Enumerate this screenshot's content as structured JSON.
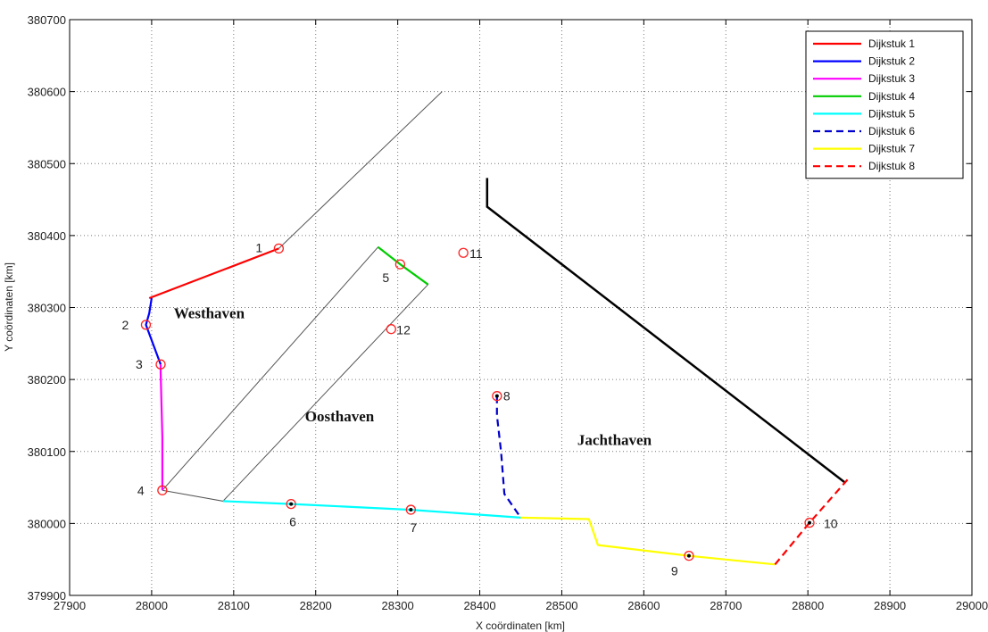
{
  "chart_data": {
    "type": "line",
    "xlabel": "X coördinaten [km]",
    "ylabel": "Y coördinaten [km]",
    "xlim": [
      27900,
      29000
    ],
    "ylim": [
      379900,
      380700
    ],
    "xticks": [
      27900,
      28000,
      28100,
      28200,
      28300,
      28400,
      28500,
      28600,
      28700,
      28800,
      28900,
      29000
    ],
    "yticks": [
      379900,
      380000,
      380100,
      380200,
      380300,
      380400,
      380500,
      380600,
      380700
    ],
    "grid": "dotted",
    "legend_position": "top-right",
    "series": [
      {
        "name": "Dijkstuk 1",
        "color": "#ff0000",
        "dash": "solid",
        "x": [
          27997,
          28155
        ],
        "y": [
          380313,
          380382
        ]
      },
      {
        "name": "Dijkstuk 2",
        "color": "#0000ff",
        "dash": "solid",
        "x": [
          28000,
          27997,
          27993,
          28011
        ],
        "y": [
          380313,
          380292,
          380276,
          380221
        ]
      },
      {
        "name": "Dijkstuk 3",
        "color": "#ff00ff",
        "dash": "solid",
        "x": [
          28011,
          28011,
          28013,
          28013
        ],
        "y": [
          380221,
          380210,
          380120,
          380046
        ]
      },
      {
        "name": "Dijkstuk 4",
        "color": "#00cc00",
        "dash": "solid",
        "x": [
          28276,
          28303,
          28337
        ],
        "y": [
          380384,
          380360,
          380332
        ]
      },
      {
        "name": "Dijkstuk 5",
        "color": "#00ffff",
        "dash": "solid",
        "x": [
          28087,
          28170,
          28316,
          28450
        ],
        "y": [
          380031,
          380027,
          380019,
          380008
        ]
      },
      {
        "name": "Dijkstuk 6",
        "color": "#0000cc",
        "dash": "dashed",
        "x": [
          28421,
          28421,
          28426,
          28428,
          28430,
          28450
        ],
        "y": [
          380177,
          380150,
          380100,
          380070,
          380041,
          380008
        ]
      },
      {
        "name": "Dijkstuk 7",
        "color": "#ffff00",
        "dash": "solid",
        "x": [
          28450,
          28533,
          28544,
          28655,
          28760
        ],
        "y": [
          380008,
          380006,
          379970,
          379955,
          379943
        ]
      },
      {
        "name": "Dijkstuk 8",
        "color": "#ff0000",
        "dash": "dashed",
        "x": [
          28760,
          28802,
          28850
        ],
        "y": [
          379943,
          380001,
          380063
        ]
      }
    ],
    "outlines": [
      {
        "color": "#555555",
        "width": 1,
        "x": [
          28013,
          28276,
          28337,
          28087,
          28013
        ],
        "y": [
          380046,
          380384,
          380332,
          380031,
          380046
        ]
      },
      {
        "color": "#555555",
        "width": 1,
        "x": [
          28155,
          28354
        ],
        "y": [
          380382,
          380600
        ]
      },
      {
        "color": "#000000",
        "width": 2.5,
        "x": [
          28409,
          28409,
          28845
        ],
        "y": [
          380480,
          380440,
          380057
        ]
      }
    ],
    "markers": [
      {
        "label": "1",
        "x": 28155,
        "y": 380382,
        "dot": false,
        "lx": -26,
        "ly": 4
      },
      {
        "label": "2",
        "x": 27993,
        "y": 380276,
        "dot": false,
        "lx": -27,
        "ly": 5
      },
      {
        "label": "3",
        "x": 28011,
        "y": 380221,
        "dot": false,
        "lx": -28,
        "ly": 5
      },
      {
        "label": "4",
        "x": 28013,
        "y": 380046,
        "dot": false,
        "lx": -28,
        "ly": 5
      },
      {
        "label": "5",
        "x": 28303,
        "y": 380360,
        "dot": false,
        "lx": -20,
        "ly": 20
      },
      {
        "label": "6",
        "x": 28170,
        "y": 380027,
        "dot": true,
        "lx": -2,
        "ly": 25
      },
      {
        "label": "7",
        "x": 28316,
        "y": 380019,
        "dot": true,
        "lx": -1,
        "ly": 25
      },
      {
        "label": "8",
        "x": 28421,
        "y": 380177,
        "dot": true,
        "lx": 7,
        "ly": 5
      },
      {
        "label": "9",
        "x": 28655,
        "y": 379955,
        "dot": true,
        "lx": -20,
        "ly": 22
      },
      {
        "label": "10",
        "x": 28802,
        "y": 380001,
        "dot": true,
        "lx": 16,
        "ly": 6
      },
      {
        "label": "11",
        "x": 28380,
        "y": 380376,
        "dot": false,
        "lx": 7,
        "ly": 6
      },
      {
        "label": "12",
        "x": 28292,
        "y": 380270,
        "dot": false,
        "lx": 6,
        "ly": 6
      }
    ],
    "annotations": [
      {
        "text": "Westhaven",
        "x": 28027,
        "y": 380285
      },
      {
        "text": "Oosthaven",
        "x": 28187,
        "y": 380142
      },
      {
        "text": "Jachthaven",
        "x": 28519,
        "y": 380109
      }
    ]
  }
}
